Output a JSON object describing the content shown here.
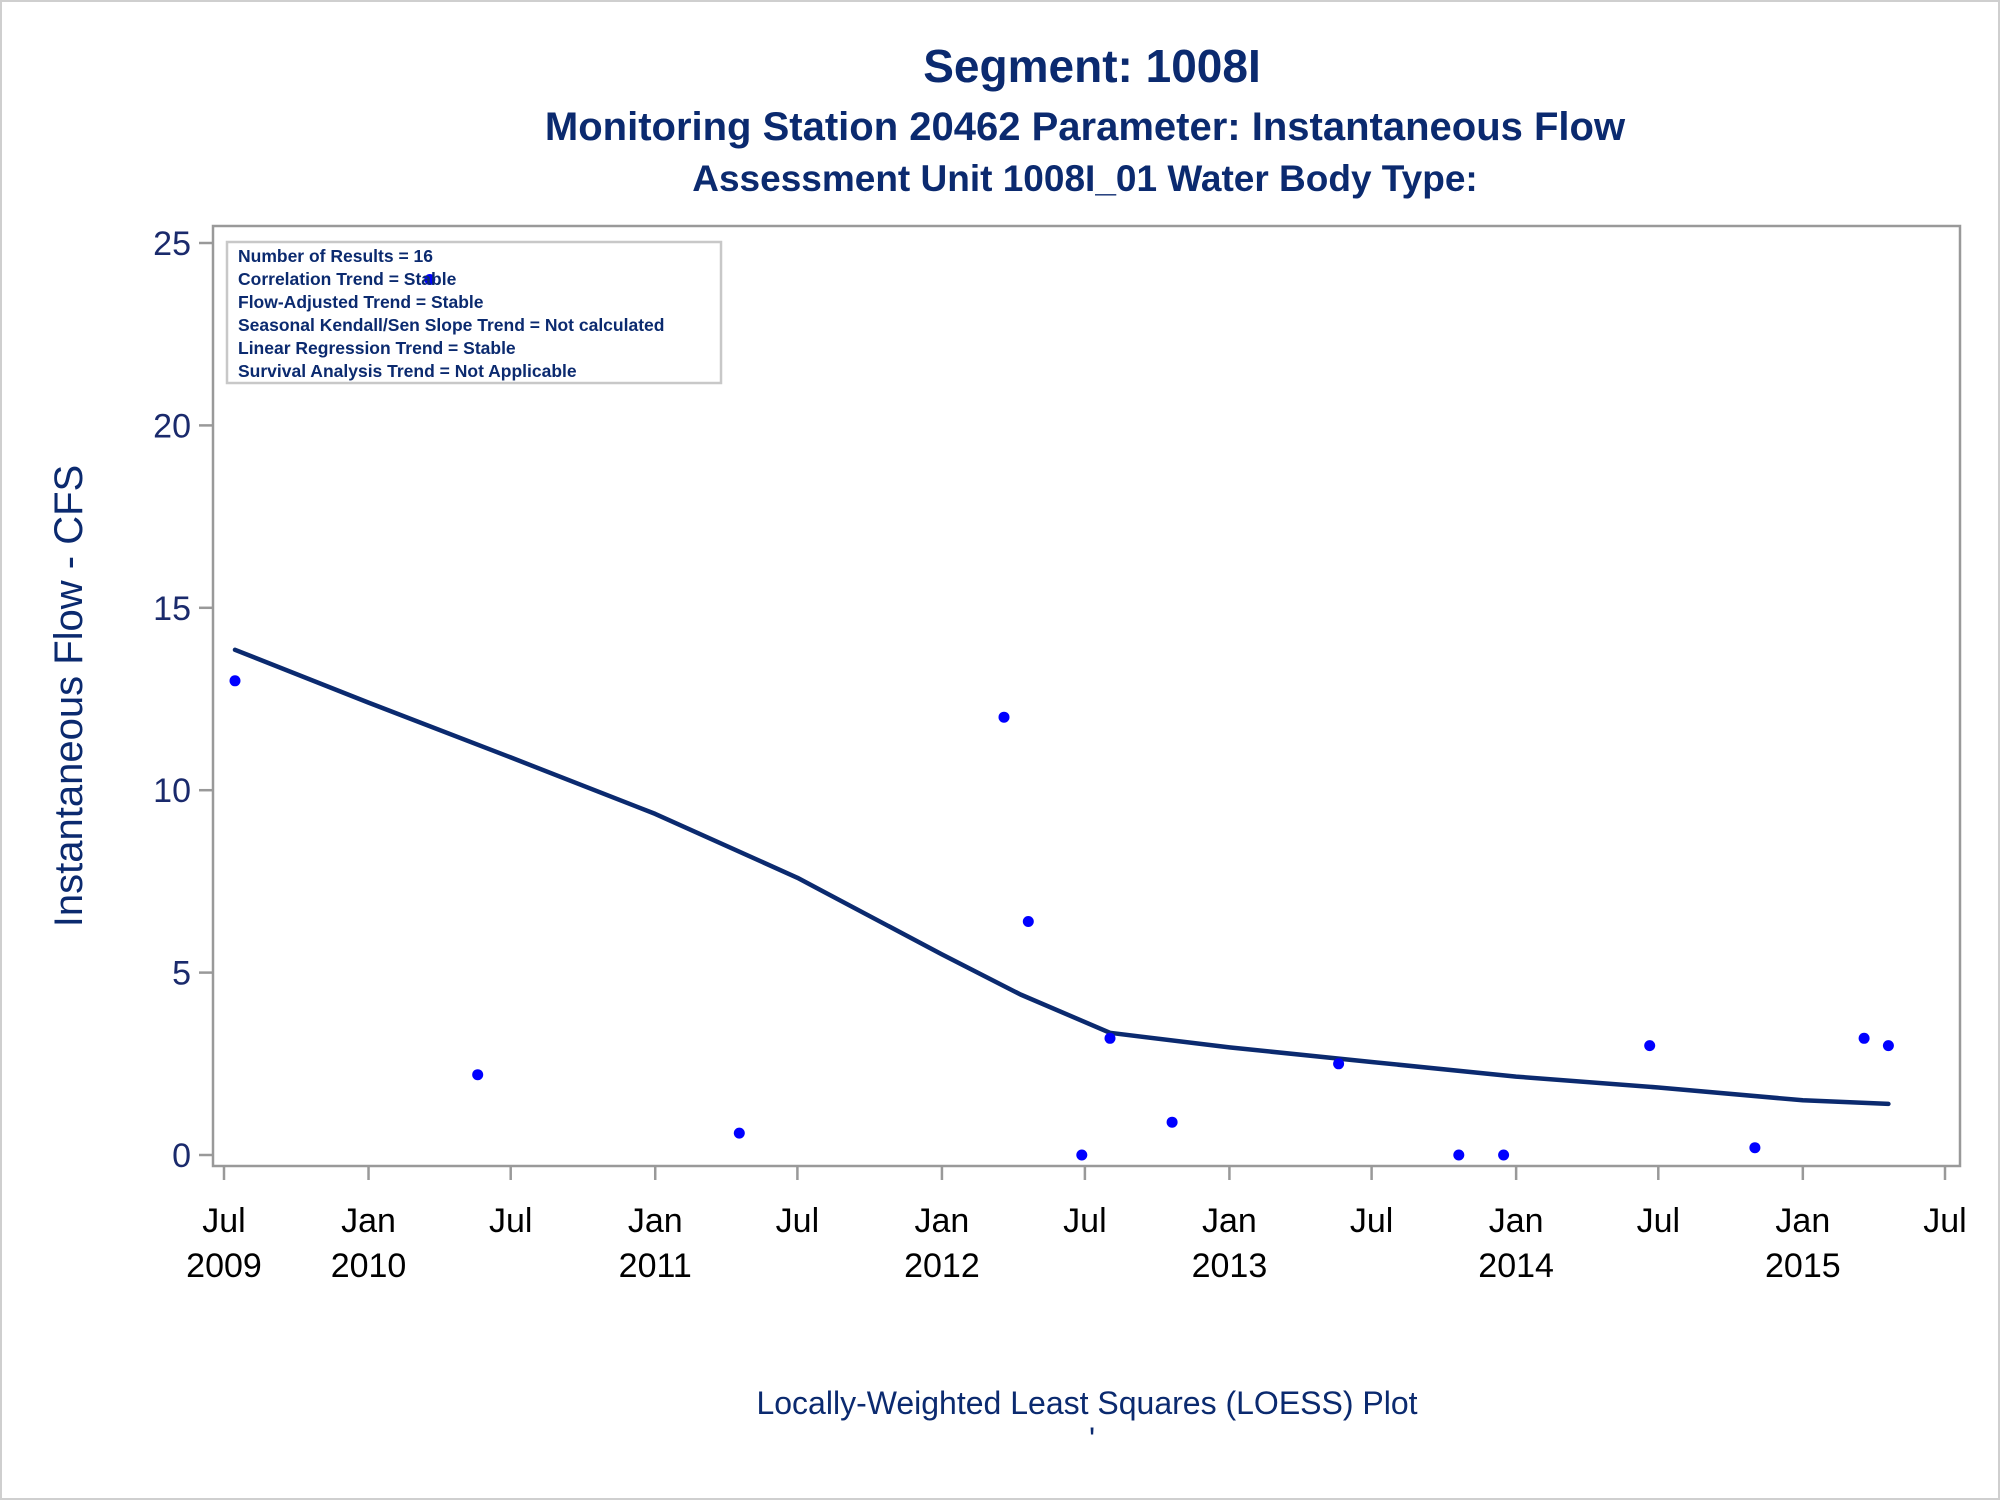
{
  "titles": {
    "line1": "Segment: 1008I",
    "line2": "Monitoring Station 20462 Parameter: Instantaneous Flow",
    "line3": "Assessment Unit 1008I_01   Water Body Type:"
  },
  "footnote": {
    "line1": "Locally-Weighted Least Squares (LOESS) Plot",
    "line2": "'"
  },
  "inset": {
    "lines": [
      "Number of Results = 16",
      "Correlation Trend = Stable",
      "Flow-Adjusted Trend = Stable",
      "Seasonal Kendall/Sen Slope Trend = Not calculated",
      "Linear Regression Trend = Stable",
      "Survival Analysis Trend = Not Applicable"
    ]
  },
  "colors": {
    "points": "#0000ff",
    "loess": "#0b2a6f",
    "text": "#0b2a6f",
    "axis": "#999999"
  },
  "chart_data": {
    "type": "scatter",
    "title": "Segment: 1008I",
    "xlabel": "",
    "ylabel": "Instantaneous Flow - CFS",
    "xlim": [
      "2009-07-01",
      "2015-07-01"
    ],
    "ylim": [
      0,
      25
    ],
    "y_ticks": [
      0,
      5,
      10,
      15,
      20,
      25
    ],
    "x_ticks": [
      {
        "date": "2009-07-01",
        "month": "Jul",
        "year": "2009"
      },
      {
        "date": "2010-01-01",
        "month": "Jan",
        "year": "2010"
      },
      {
        "date": "2010-07-01",
        "month": "Jul",
        "year": ""
      },
      {
        "date": "2011-01-01",
        "month": "Jan",
        "year": "2011"
      },
      {
        "date": "2011-07-01",
        "month": "Jul",
        "year": ""
      },
      {
        "date": "2012-01-01",
        "month": "Jan",
        "year": "2012"
      },
      {
        "date": "2012-07-01",
        "month": "Jul",
        "year": ""
      },
      {
        "date": "2013-01-01",
        "month": "Jan",
        "year": "2013"
      },
      {
        "date": "2013-07-01",
        "month": "Jul",
        "year": ""
      },
      {
        "date": "2014-01-01",
        "month": "Jan",
        "year": "2014"
      },
      {
        "date": "2014-07-01",
        "month": "Jul",
        "year": ""
      },
      {
        "date": "2015-01-01",
        "month": "Jan",
        "year": "2015"
      },
      {
        "date": "2015-07-01",
        "month": "Jul",
        "year": ""
      }
    ],
    "grid": false,
    "series": [
      {
        "kind": "points",
        "points": [
          {
            "x": "2009-07-15",
            "y": 13.0
          },
          {
            "x": "2010-03-20",
            "y": 24.0
          },
          {
            "x": "2010-05-20",
            "y": 2.2
          },
          {
            "x": "2011-04-18",
            "y": 0.6
          },
          {
            "x": "2012-03-20",
            "y": 12.0
          },
          {
            "x": "2012-04-20",
            "y": 6.4
          },
          {
            "x": "2012-06-27",
            "y": 0.0
          },
          {
            "x": "2012-08-02",
            "y": 3.2
          },
          {
            "x": "2012-10-20",
            "y": 0.9
          },
          {
            "x": "2013-05-20",
            "y": 2.5
          },
          {
            "x": "2013-10-20",
            "y": 0.0
          },
          {
            "x": "2013-12-16",
            "y": 0.0
          },
          {
            "x": "2014-06-20",
            "y": 3.0
          },
          {
            "x": "2014-11-01",
            "y": 0.2
          },
          {
            "x": "2015-03-20",
            "y": 3.2
          },
          {
            "x": "2015-04-20",
            "y": 3.0
          }
        ]
      },
      {
        "kind": "loess",
        "points": [
          {
            "x": "2009-07-15",
            "y": 13.85
          },
          {
            "x": "2010-01-01",
            "y": 12.4
          },
          {
            "x": "2010-07-01",
            "y": 10.9
          },
          {
            "x": "2011-01-01",
            "y": 9.35
          },
          {
            "x": "2011-07-01",
            "y": 7.6
          },
          {
            "x": "2012-01-01",
            "y": 5.5
          },
          {
            "x": "2012-04-10",
            "y": 4.4
          },
          {
            "x": "2012-08-02",
            "y": 3.35
          },
          {
            "x": "2013-01-01",
            "y": 2.95
          },
          {
            "x": "2013-07-01",
            "y": 2.55
          },
          {
            "x": "2014-01-01",
            "y": 2.15
          },
          {
            "x": "2014-07-01",
            "y": 1.85
          },
          {
            "x": "2015-01-01",
            "y": 1.5
          },
          {
            "x": "2015-04-20",
            "y": 1.4
          }
        ]
      }
    ]
  }
}
